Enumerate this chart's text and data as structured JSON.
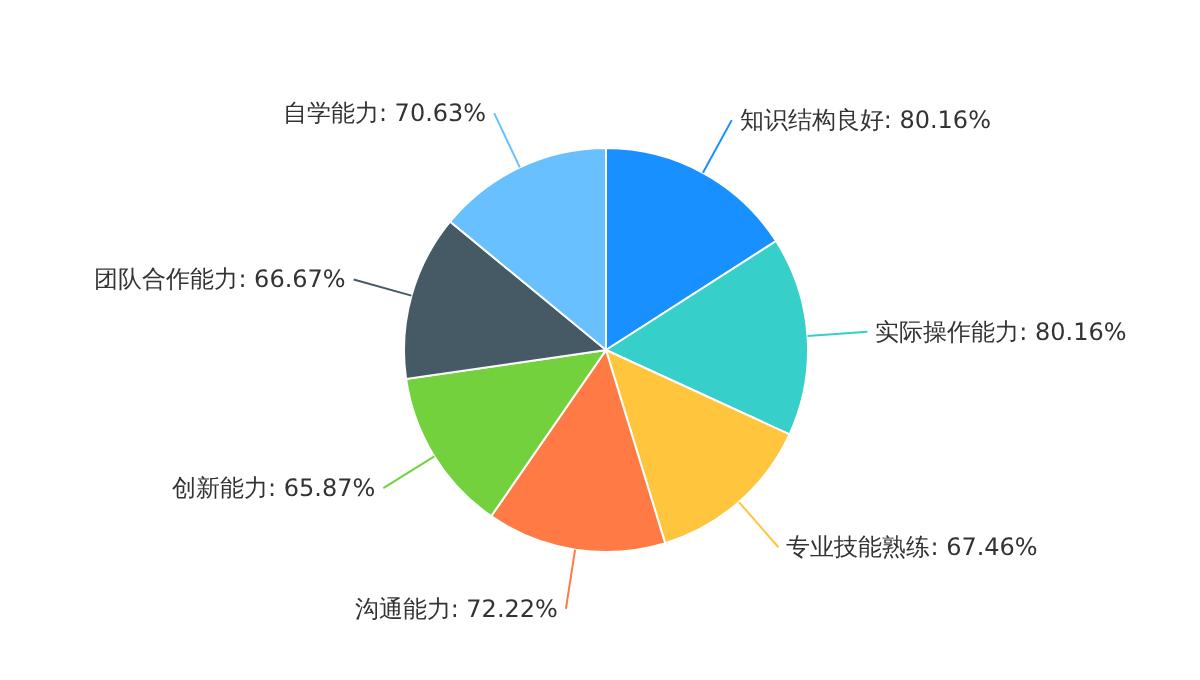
{
  "chart_data": {
    "type": "pie",
    "categories": [
      "知识结构良好",
      "实际操作能力",
      "专业技能熟练",
      "沟通能力",
      "创新能力",
      "团队合作能力",
      "自学能力"
    ],
    "values": [
      80.16,
      80.16,
      67.46,
      72.22,
      65.87,
      66.67,
      70.63
    ],
    "value_labels": [
      "80.16%",
      "80.16%",
      "67.46%",
      "72.22%",
      "65.87%",
      "66.67%",
      "70.63%"
    ],
    "colors": [
      "#1890ff",
      "#36cfc9",
      "#ffc53d",
      "#ff7a45",
      "#73d13d",
      "#465a65",
      "#69c0ff"
    ],
    "legend": false
  }
}
